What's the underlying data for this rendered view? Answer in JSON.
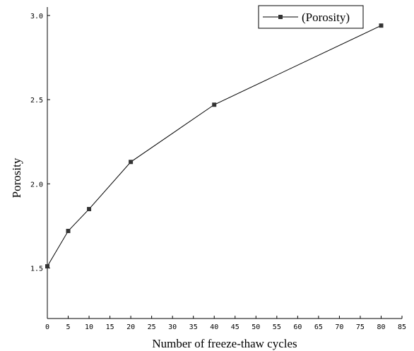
{
  "chart_data": {
    "type": "line",
    "title": "",
    "xlabel": "Number of freeze-thaw cycles",
    "ylabel": "Porosity",
    "xlim": [
      0,
      85
    ],
    "ylim": [
      1.2,
      3.05
    ],
    "xticks": [
      0,
      5,
      10,
      15,
      20,
      25,
      30,
      35,
      40,
      45,
      50,
      55,
      60,
      65,
      70,
      75,
      80,
      85
    ],
    "xtick_labels": [
      "0",
      "5",
      "10",
      "15",
      "20",
      "25",
      "30",
      "35",
      "40",
      "45",
      "50",
      "55",
      "60",
      "65",
      "70",
      "75",
      "80",
      "85"
    ],
    "yticks": [
      1.5,
      2.0,
      2.5,
      3.0
    ],
    "ytick_labels": [
      "1.5",
      "2.0",
      "2.5",
      "3.0"
    ],
    "grid": false,
    "legend_position": "top-right",
    "series": [
      {
        "name": "(Porosity)",
        "marker": "square",
        "color": "#000000",
        "x": [
          0,
          5,
          10,
          20,
          40,
          80
        ],
        "y": [
          1.51,
          1.72,
          1.85,
          2.13,
          2.47,
          2.94
        ]
      }
    ]
  }
}
